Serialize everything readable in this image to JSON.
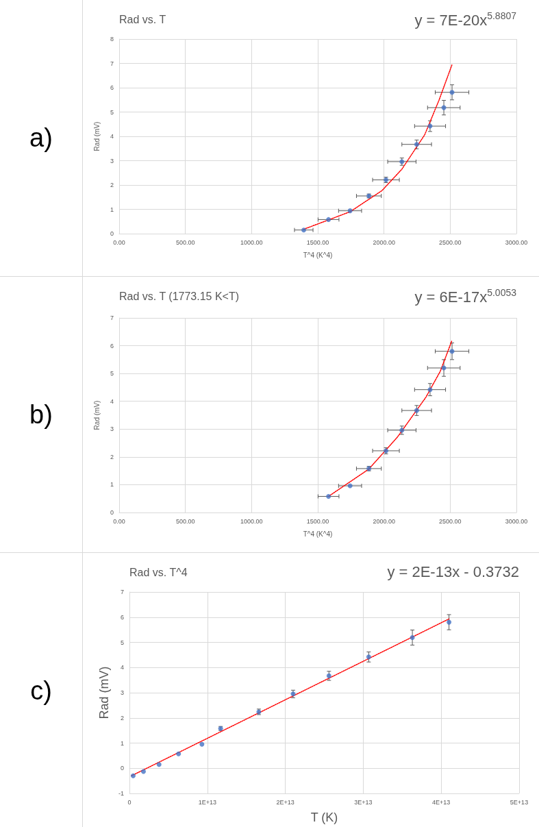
{
  "chart_data": [
    {
      "type": "scatter",
      "title": "Rad vs. T",
      "xlabel": "T^4 (K^4)",
      "ylabel": "Rad (mV)",
      "annotations": [
        "a)",
        "y = 7E-20x$^{5.8807}$"
      ],
      "x": [
        1394,
        1581,
        1744,
        1886,
        2015,
        2135,
        2247,
        2348,
        2452,
        2514
      ],
      "series": [
        {
          "color": "#4472c4",
          "marker": "circle",
          "values": [
            0.15,
            0.58,
            0.94,
            1.55,
            2.21,
            2.96,
            3.67,
            4.42,
            5.18,
            5.81
          ],
          "errors": [
            null,
            null,
            null,
            0.08,
            0.11,
            0.15,
            0.18,
            0.22,
            0.3,
            0.31
          ],
          "xerrors": [
            70,
            79,
            87,
            94,
            101,
            107,
            112,
            117,
            123,
            127
          ]
        },
        {
          "type": "line",
          "color": "#ff0000",
          "marker": "none",
          "line_style": "dotted",
          "x": [
            1394,
            1744,
            1985,
            2135,
            2307,
            2415,
            2514
          ],
          "values": [
            0.18,
            0.9,
            1.77,
            2.65,
            4.06,
            5.48,
            6.95
          ]
        }
      ],
      "xlim": [
        0,
        3000
      ],
      "xticks": [
        {
          "value": 0,
          "label": "0.00"
        },
        {
          "value": 500,
          "label": "500.00"
        },
        {
          "value": 1000,
          "label": "1000.00"
        },
        {
          "value": 1500,
          "label": "1500.00"
        },
        {
          "value": 2000,
          "label": "2000.00"
        },
        {
          "value": 2500,
          "label": "2500.00"
        },
        {
          "value": 3000,
          "label": "3000.00"
        }
      ],
      "ylim": [
        0,
        8
      ],
      "yticks": [
        0,
        1,
        2,
        3,
        4,
        5,
        6,
        7,
        8
      ],
      "grid": true
    },
    {
      "type": "scatter",
      "title": "Rad vs. T (1773.15 K<T)",
      "xlabel": "T^4 (K^4)",
      "ylabel": "Rad (mV)",
      "annotations": [
        "b)",
        "y = 6E-17x$^{5.0053}$"
      ],
      "x": [
        1581,
        1744,
        1886,
        2015,
        2135,
        2247,
        2348,
        2452,
        2514
      ],
      "series": [
        {
          "color": "#4472c4",
          "marker": "circle",
          "values": [
            0.58,
            0.96,
            1.58,
            2.22,
            2.96,
            3.67,
            4.42,
            5.2,
            5.8
          ],
          "errors": [
            null,
            null,
            0.08,
            0.11,
            0.15,
            0.18,
            0.22,
            0.3,
            0.3
          ],
          "xerrors": [
            79,
            87,
            94,
            101,
            107,
            112,
            117,
            123,
            127
          ]
        },
        {
          "type": "line",
          "color": "#ff0000",
          "marker": "none",
          "line_style": "dotted",
          "x": [
            1581,
            1885,
            2101,
            2317,
            2425,
            2511
          ],
          "values": [
            0.58,
            1.56,
            2.71,
            4.15,
            5.08,
            6.16
          ]
        }
      ],
      "xlim": [
        0,
        3000
      ],
      "xticks": [
        {
          "value": 0,
          "label": "0.00"
        },
        {
          "value": 500,
          "label": "500.00"
        },
        {
          "value": 1000,
          "label": "1000.00"
        },
        {
          "value": 1500,
          "label": "1500.00"
        },
        {
          "value": 2000,
          "label": "2000.00"
        },
        {
          "value": 2500,
          "label": "2500.00"
        },
        {
          "value": 3000,
          "label": "3000.00"
        }
      ],
      "ylim": [
        0,
        7
      ],
      "yticks": [
        0,
        1,
        2,
        3,
        4,
        5,
        6,
        7
      ],
      "grid": true
    },
    {
      "type": "scatter",
      "title": "Rad vs. T^4",
      "xlabel": "T (K)",
      "ylabel": "Rad (mV)",
      "annotations": [
        "c)",
        "y = 2E-13x - 0.3732"
      ],
      "x": [
        480000000000.0,
        1800000000000.0,
        3800000000000.0,
        6300000000000.0,
        9300000000000.0,
        11700000000000.0,
        16600000000000.0,
        21000000000000.0,
        25600000000000.0,
        30700000000000.0,
        36300000000000.0,
        41000000000000.0
      ],
      "series": [
        {
          "color": "#4472c4",
          "marker": "circle",
          "values": [
            -0.3,
            -0.13,
            0.15,
            0.57,
            0.95,
            1.58,
            2.24,
            2.95,
            3.67,
            4.42,
            5.19,
            5.8
          ],
          "errors": [
            null,
            null,
            null,
            null,
            null,
            0.08,
            0.11,
            0.15,
            0.18,
            0.2,
            0.3,
            0.3
          ]
        },
        {
          "type": "line",
          "color": "#ff0000",
          "marker": "none",
          "line_style": "dotted",
          "x": [
            260000000000.0,
            41000000000000.0
          ],
          "values": [
            -0.3,
            5.93
          ]
        }
      ],
      "xlim": [
        0,
        50000000000000.0
      ],
      "xticks": [
        0,
        {
          "value": 10000000000000.0,
          "label": "1E+13"
        },
        {
          "value": 20000000000000.0,
          "label": "2E+13"
        },
        {
          "value": 30000000000000.0,
          "label": "3E+13"
        },
        {
          "value": 40000000000000.0,
          "label": "4E+13"
        },
        {
          "value": 50000000000000.0,
          "label": "5E+13"
        }
      ],
      "ylim": [
        -1,
        7
      ],
      "yticks": [
        -1,
        0,
        1,
        2,
        3,
        4,
        5,
        6,
        7
      ],
      "grid": true
    }
  ]
}
